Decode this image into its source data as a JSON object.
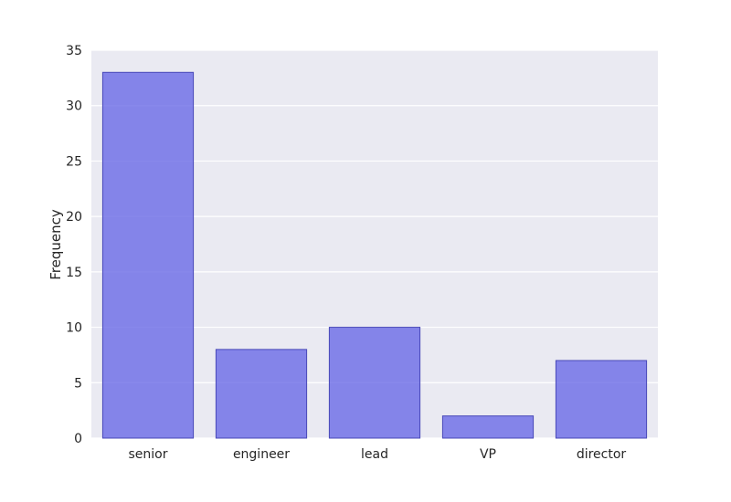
{
  "chart_data": {
    "type": "bar",
    "title": "",
    "xlabel": "",
    "ylabel": "Frequency",
    "categories": [
      "senior",
      "engineer",
      "lead",
      "VP",
      "director"
    ],
    "values": [
      33,
      8,
      10,
      2,
      7
    ],
    "ylim": [
      0,
      35
    ],
    "yticks": [
      0,
      5,
      10,
      15,
      20,
      25,
      30,
      35
    ],
    "grid": true,
    "legend": "none",
    "colors": {
      "bar_fill": "#6a6ae6",
      "bar_stroke": "#4848b8",
      "plot_background": "#eaeaf2",
      "grid": "#ffffff"
    }
  }
}
